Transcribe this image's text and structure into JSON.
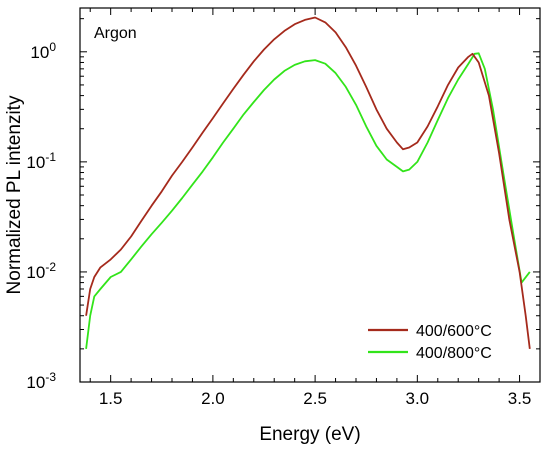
{
  "chart_data": {
    "type": "line",
    "annotation": "Argon",
    "xlabel": "Energy (eV)",
    "ylabel": "Normalized PL intenzity",
    "xlim": [
      1.35,
      3.6
    ],
    "ylim": [
      0.001,
      2.5
    ],
    "yscale": "log",
    "grid": false,
    "legend_position": "bottom-right",
    "x_ticks": [
      {
        "v": 1.5,
        "label": "1.5"
      },
      {
        "v": 2.0,
        "label": "2.0"
      },
      {
        "v": 2.5,
        "label": "2.5"
      },
      {
        "v": 3.0,
        "label": "3.0"
      },
      {
        "v": 3.5,
        "label": "3.5"
      }
    ],
    "y_ticks": [
      {
        "v": 0.001,
        "base": "10",
        "exp": "-3"
      },
      {
        "v": 0.01,
        "base": "10",
        "exp": "-2"
      },
      {
        "v": 0.1,
        "base": "10",
        "exp": "-1"
      },
      {
        "v": 1,
        "base": "10",
        "exp": "0"
      }
    ],
    "series": [
      {
        "name": "400/600°C",
        "color": "#a52a1c",
        "points": [
          [
            1.38,
            0.004
          ],
          [
            1.4,
            0.007
          ],
          [
            1.42,
            0.009
          ],
          [
            1.45,
            0.011
          ],
          [
            1.5,
            0.013
          ],
          [
            1.55,
            0.016
          ],
          [
            1.6,
            0.021
          ],
          [
            1.65,
            0.029
          ],
          [
            1.7,
            0.04
          ],
          [
            1.75,
            0.054
          ],
          [
            1.8,
            0.075
          ],
          [
            1.85,
            0.1
          ],
          [
            1.9,
            0.135
          ],
          [
            1.95,
            0.185
          ],
          [
            2.0,
            0.25
          ],
          [
            2.05,
            0.34
          ],
          [
            2.1,
            0.46
          ],
          [
            2.15,
            0.62
          ],
          [
            2.2,
            0.82
          ],
          [
            2.25,
            1.05
          ],
          [
            2.3,
            1.3
          ],
          [
            2.35,
            1.55
          ],
          [
            2.4,
            1.78
          ],
          [
            2.45,
            1.95
          ],
          [
            2.5,
            2.05
          ],
          [
            2.55,
            1.85
          ],
          [
            2.6,
            1.5
          ],
          [
            2.65,
            1.1
          ],
          [
            2.7,
            0.75
          ],
          [
            2.75,
            0.48
          ],
          [
            2.8,
            0.3
          ],
          [
            2.85,
            0.2
          ],
          [
            2.9,
            0.15
          ],
          [
            2.93,
            0.13
          ],
          [
            2.96,
            0.135
          ],
          [
            3.0,
            0.15
          ],
          [
            3.05,
            0.21
          ],
          [
            3.1,
            0.32
          ],
          [
            3.15,
            0.5
          ],
          [
            3.2,
            0.72
          ],
          [
            3.25,
            0.9
          ],
          [
            3.27,
            0.96
          ],
          [
            3.3,
            0.8
          ],
          [
            3.35,
            0.4
          ],
          [
            3.4,
            0.12
          ],
          [
            3.45,
            0.03
          ],
          [
            3.5,
            0.01
          ],
          [
            3.53,
            0.004
          ],
          [
            3.55,
            0.002
          ]
        ]
      },
      {
        "name": "400/800°C",
        "color": "#32e41a",
        "points": [
          [
            1.38,
            0.002
          ],
          [
            1.4,
            0.004
          ],
          [
            1.42,
            0.006
          ],
          [
            1.45,
            0.007
          ],
          [
            1.5,
            0.009
          ],
          [
            1.55,
            0.01
          ],
          [
            1.6,
            0.013
          ],
          [
            1.65,
            0.017
          ],
          [
            1.7,
            0.022
          ],
          [
            1.75,
            0.028
          ],
          [
            1.8,
            0.036
          ],
          [
            1.85,
            0.047
          ],
          [
            1.9,
            0.062
          ],
          [
            1.95,
            0.082
          ],
          [
            2.0,
            0.11
          ],
          [
            2.05,
            0.15
          ],
          [
            2.1,
            0.2
          ],
          [
            2.15,
            0.27
          ],
          [
            2.2,
            0.35
          ],
          [
            2.25,
            0.45
          ],
          [
            2.3,
            0.56
          ],
          [
            2.35,
            0.67
          ],
          [
            2.4,
            0.76
          ],
          [
            2.45,
            0.82
          ],
          [
            2.5,
            0.84
          ],
          [
            2.55,
            0.78
          ],
          [
            2.6,
            0.64
          ],
          [
            2.65,
            0.48
          ],
          [
            2.7,
            0.33
          ],
          [
            2.75,
            0.21
          ],
          [
            2.8,
            0.14
          ],
          [
            2.85,
            0.105
          ],
          [
            2.9,
            0.09
          ],
          [
            2.93,
            0.082
          ],
          [
            2.96,
            0.085
          ],
          [
            3.0,
            0.1
          ],
          [
            3.05,
            0.15
          ],
          [
            3.1,
            0.24
          ],
          [
            3.15,
            0.38
          ],
          [
            3.2,
            0.56
          ],
          [
            3.25,
            0.78
          ],
          [
            3.28,
            0.96
          ],
          [
            3.3,
            0.97
          ],
          [
            3.33,
            0.7
          ],
          [
            3.37,
            0.3
          ],
          [
            3.42,
            0.08
          ],
          [
            3.47,
            0.022
          ],
          [
            3.51,
            0.008
          ],
          [
            3.55,
            0.01
          ]
        ]
      }
    ]
  }
}
